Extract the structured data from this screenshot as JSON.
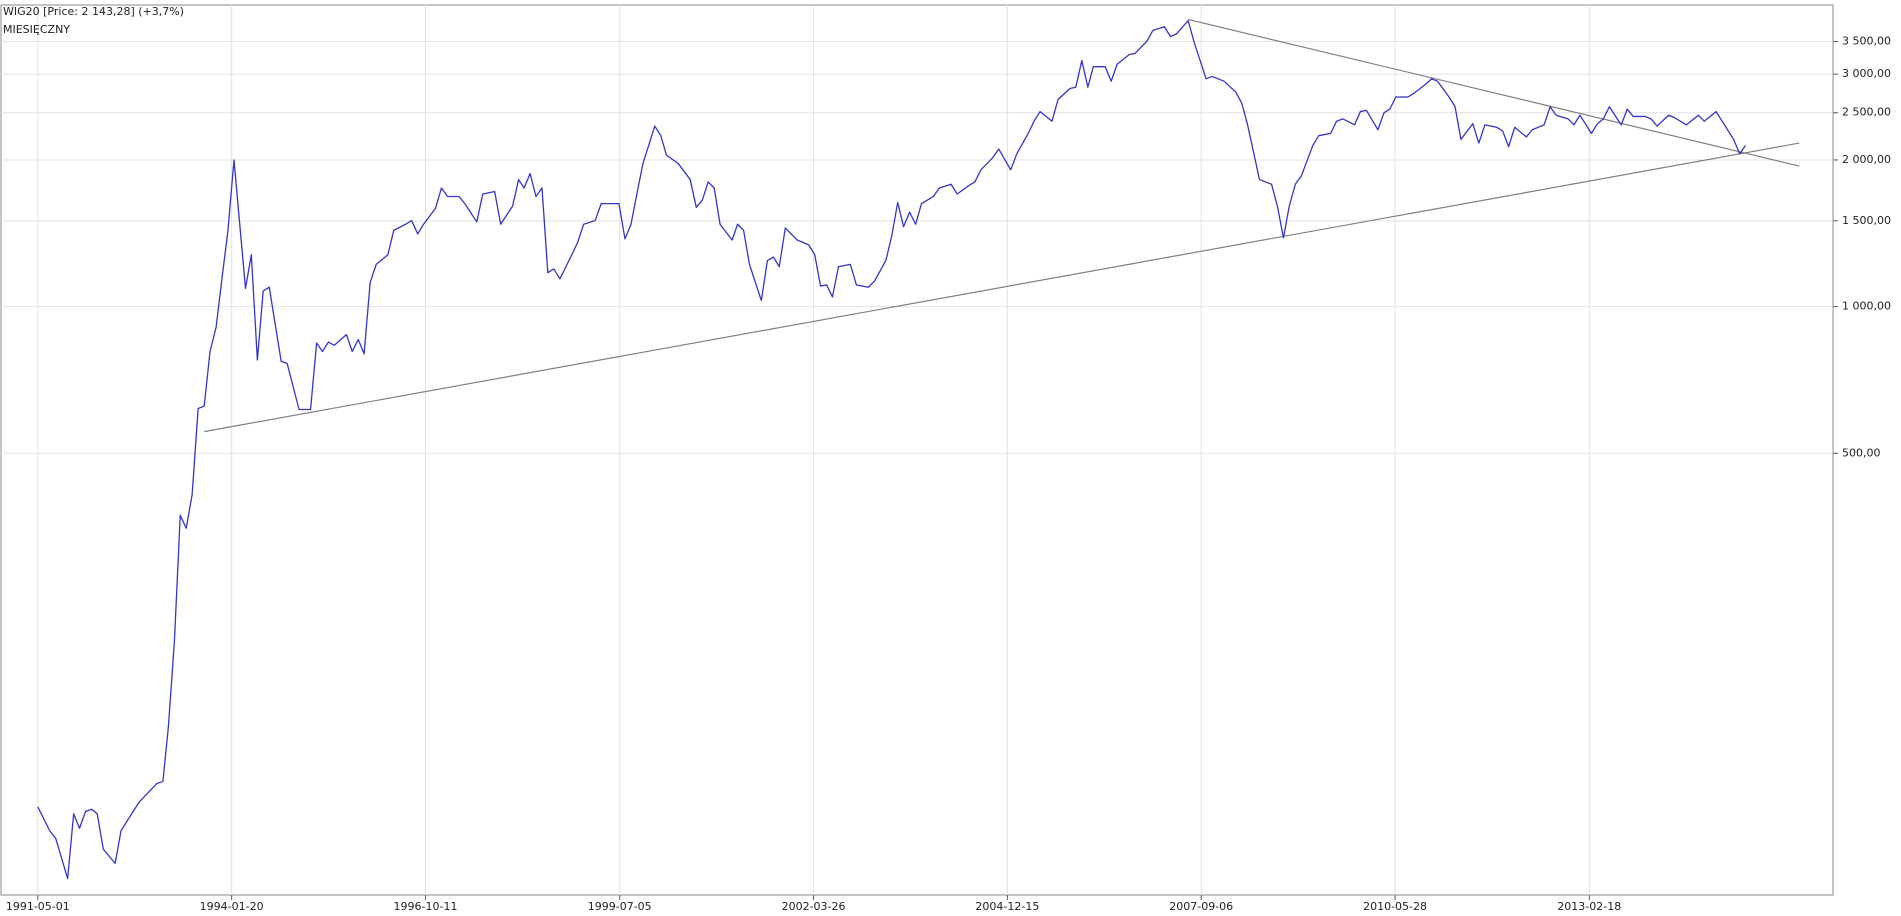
{
  "chart_data": {
    "type": "line",
    "title": "WIG20 [Price: 2 143,28] (+3,7%)",
    "subtitle": "MIESIĘCZNY",
    "log_scale": true,
    "grid": true,
    "x": [
      "1991-05-01",
      "1991-07-01",
      "1991-08-01",
      "1991-10-01",
      "1991-11-01",
      "1991-12-01",
      "1992-01-01",
      "1992-02-01",
      "1992-03-01",
      "1992-04-01",
      "1992-06-01",
      "1992-07-01",
      "1992-09-01",
      "1992-10-01",
      "1992-11-01",
      "1993-01-01",
      "1993-02-01",
      "1993-03-01",
      "1993-04-01",
      "1993-05-01",
      "1993-06-01",
      "1993-07-01",
      "1993-08-01",
      "1993-09-01",
      "1993-10-01",
      "1993-11-01",
      "1993-12-01",
      "1994-01-01",
      "1994-02-01",
      "1994-04-01",
      "1994-05-01",
      "1994-06-01",
      "1994-07-01",
      "1994-08-01",
      "1994-10-01",
      "1994-11-01",
      "1995-01-01",
      "1995-03-01",
      "1995-04-01",
      "1995-05-01",
      "1995-06-01",
      "1995-07-01",
      "1995-09-01",
      "1995-10-01",
      "1995-11-01",
      "1995-12-01",
      "1996-01-01",
      "1996-02-01",
      "1996-04-01",
      "1996-05-01",
      "1996-07-01",
      "1996-08-01",
      "1996-09-01",
      "1996-10-01",
      "1996-12-01",
      "1997-01-01",
      "1997-02-01",
      "1997-04-01",
      "1997-05-01",
      "1997-07-01",
      "1997-08-01",
      "1997-10-01",
      "1997-11-01",
      "1998-01-01",
      "1998-02-01",
      "1998-03-01",
      "1998-04-01",
      "1998-05-01",
      "1998-06-01",
      "1998-07-01",
      "1998-08-01",
      "1998-09-01",
      "1998-11-01",
      "1998-12-01",
      "1999-01-01",
      "1999-03-01",
      "1999-04-01",
      "1999-07-01",
      "1999-08-01",
      "1999-09-01",
      "1999-10-01",
      "1999-11-01",
      "2000-01-01",
      "2000-02-01",
      "2000-03-01",
      "2000-05-01",
      "2000-07-01",
      "2000-08-01",
      "2000-09-01",
      "2000-10-01",
      "2000-11-01",
      "2000-12-01",
      "2001-02-01",
      "2001-03-01",
      "2001-04-01",
      "2001-05-01",
      "2001-07-01",
      "2001-08-01",
      "2001-09-01",
      "2001-10-01",
      "2001-11-01",
      "2002-01-01",
      "2002-03-01",
      "2002-04-01",
      "2002-05-01",
      "2002-06-01",
      "2002-07-01",
      "2002-08-01",
      "2002-10-01",
      "2002-11-01",
      "2003-01-01",
      "2003-02-01",
      "2003-04-01",
      "2003-05-01",
      "2003-06-01",
      "2003-07-01",
      "2003-08-01",
      "2003-09-01",
      "2003-10-01",
      "2003-12-01",
      "2004-01-01",
      "2004-03-01",
      "2004-04-01",
      "2004-06-01",
      "2004-07-01",
      "2004-08-01",
      "2004-10-01",
      "2004-11-01",
      "2005-01-01",
      "2005-02-01",
      "2005-04-01",
      "2005-05-01",
      "2005-06-01",
      "2005-08-01",
      "2005-09-01",
      "2005-11-01",
      "2005-12-01",
      "2006-01-01",
      "2006-02-01",
      "2006-03-01",
      "2006-05-01",
      "2006-06-01",
      "2006-07-01",
      "2006-09-01",
      "2006-10-01",
      "2006-12-01",
      "2007-01-01",
      "2007-03-01",
      "2007-04-01",
      "2007-05-01",
      "2007-07-01",
      "2007-08-01",
      "2007-10-01",
      "2007-11-01",
      "2008-01-01",
      "2008-03-01",
      "2008-04-01",
      "2008-05-01",
      "2008-07-01",
      "2008-09-01",
      "2008-10-01",
      "2008-11-01",
      "2008-12-01",
      "2009-01-01",
      "2009-02-01",
      "2009-04-01",
      "2009-05-01",
      "2009-07-01",
      "2009-08-01",
      "2009-09-01",
      "2009-11-01",
      "2009-12-01",
      "2010-01-01",
      "2010-03-01",
      "2010-04-01",
      "2010-05-01",
      "2010-06-01",
      "2010-08-01",
      "2010-09-01",
      "2010-11-01",
      "2010-12-01",
      "2011-01-01",
      "2011-03-01",
      "2011-04-01",
      "2011-05-01",
      "2011-07-01",
      "2011-08-01",
      "2011-09-01",
      "2011-11-01",
      "2011-12-01",
      "2012-01-01",
      "2012-02-01",
      "2012-04-01",
      "2012-05-01",
      "2012-07-01",
      "2012-08-01",
      "2012-09-01",
      "2012-11-01",
      "2012-12-01",
      "2013-01-01",
      "2013-03-01",
      "2013-04-01",
      "2013-05-01",
      "2013-06-01",
      "2013-08-01",
      "2013-09-01",
      "2013-10-01",
      "2013-12-01",
      "2014-01-01",
      "2014-02-01",
      "2014-04-01",
      "2014-05-01",
      "2014-07-01",
      "2014-08-01",
      "2014-09-01",
      "2014-10-01",
      "2014-12-01",
      "2015-01-01",
      "2015-03-01",
      "2015-04-01",
      "2015-05-01"
    ],
    "series": [
      {
        "name": "WIG20",
        "color": "#3535c8",
        "values": [
          94,
          84,
          81,
          67,
          91,
          85,
          92,
          93,
          91,
          77,
          72,
          84,
          92,
          96,
          99,
          105,
          106,
          137,
          205,
          373,
          351,
          411,
          618,
          625,
          809,
          907,
          1140,
          1434,
          1999,
          1090,
          1278,
          777,
          1077,
          1096,
          773,
          764,
          615,
          615,
          842,
          809,
          846,
          833,
          876,
          809,
          856,
          800,
          1121,
          1221,
          1278,
          1434,
          1476,
          1502,
          1410,
          1476,
          1590,
          1752,
          1683,
          1683,
          1627,
          1493,
          1703,
          1723,
          1476,
          1608,
          1823,
          1752,
          1876,
          1683,
          1752,
          1174,
          1195,
          1140,
          1278,
          1355,
          1476,
          1502,
          1627,
          1627,
          1377,
          1476,
          1703,
          1965,
          2347,
          2243,
          2046,
          1965,
          1823,
          1599,
          1654,
          1803,
          1752,
          1476,
          1370,
          1476,
          1434,
          1221,
          1029,
          1243,
          1264,
          1208,
          1450,
          1370,
          1339,
          1278,
          1102,
          1108,
          1047,
          1208,
          1221,
          1108,
          1096,
          1127,
          1243,
          1394,
          1636,
          1459,
          1563,
          1476,
          1627,
          1683,
          1752,
          1783,
          1703,
          1773,
          1803,
          1909,
          2022,
          2106,
          1909,
          2058,
          2268,
          2402,
          2514,
          2402,
          2662,
          2803,
          2820,
          3199,
          2820,
          3108,
          3108,
          2902,
          3142,
          3290,
          3309,
          3505,
          3690,
          3754,
          3585,
          3627,
          3864,
          3485,
          2935,
          2968,
          2902,
          2757,
          2617,
          2361,
          1823,
          1783,
          1608,
          1385,
          1608,
          1783,
          1855,
          2142,
          2243,
          2268,
          2402,
          2429,
          2361,
          2514,
          2529,
          2307,
          2499,
          2544,
          2693,
          2693,
          2740,
          2860,
          2935,
          2902,
          2693,
          2572,
          2204,
          2374,
          2166,
          2361,
          2334,
          2294,
          2130,
          2334,
          2230,
          2307,
          2361,
          2572,
          2471,
          2429,
          2361,
          2471,
          2268,
          2374,
          2429,
          2572,
          2361,
          2544,
          2457,
          2457,
          2429,
          2347,
          2471,
          2443,
          2361,
          2415,
          2471,
          2402,
          2514,
          2402,
          2204,
          2058,
          2143
        ]
      }
    ],
    "trendlines": [
      {
        "color": "#808080",
        "x": [
          "1993-09-01",
          "2016-02-01"
        ],
        "values": [
          554,
          2166
        ]
      },
      {
        "color": "#808080",
        "x": [
          "2007-07-01",
          "2016-02-01"
        ],
        "values": [
          3885,
          1943
        ]
      }
    ],
    "xlim": [
      "1990-10-24",
      "2016-07-23"
    ],
    "xticks": [
      "1991-05-01",
      "1994-01-20",
      "1996-10-11",
      "1999-07-05",
      "2002-03-26",
      "2004-12-15",
      "2007-09-06",
      "2010-05-28",
      "2013-02-18"
    ],
    "ylim": [
      62,
      4160
    ],
    "yticks": [
      {
        "value": 500,
        "label": "500,00"
      },
      {
        "value": 1000,
        "label": "1 000,00"
      },
      {
        "value": 1500,
        "label": "1 500,00"
      },
      {
        "value": 2000,
        "label": "2 000,00"
      },
      {
        "value": 2500,
        "label": "2 500,00"
      },
      {
        "value": 3000,
        "label": "3 000,00"
      },
      {
        "value": 3500,
        "label": "3 500,00"
      }
    ]
  }
}
